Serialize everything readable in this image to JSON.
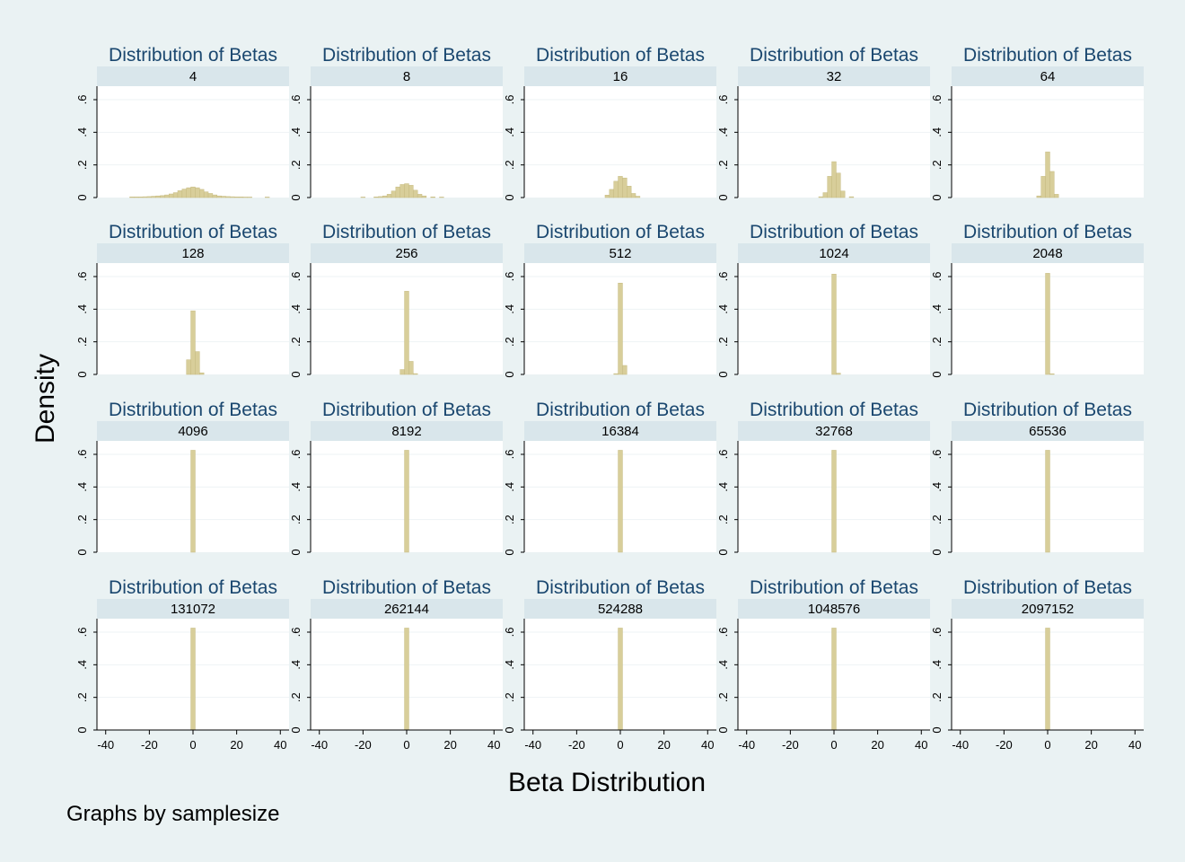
{
  "chart_data": {
    "type": "bar",
    "panel_title": "Distribution of Betas",
    "xlabel": "Beta Distribution",
    "ylabel": "Density",
    "note": "Graphs by samplesize",
    "xlim": [
      -44,
      44
    ],
    "ylim": [
      0,
      0.68
    ],
    "x_ticks": [
      -40,
      -20,
      0,
      20,
      40
    ],
    "y_ticks": [
      0,
      0.2,
      0.4,
      0.6
    ],
    "y_tick_labels": [
      "0",
      ".2",
      ".4",
      ".6"
    ],
    "grid": true,
    "colors": {
      "background": "#eaf2f3",
      "plot_area": "#ffffff",
      "strip": "#d9e6eb",
      "bar_fill": "#d8ce9a",
      "bar_stroke": "#c6bb81",
      "title": "#1a476f",
      "grid": "#eef3f5"
    },
    "bin_width": 2,
    "panels": [
      {
        "samplesize": "4",
        "bins": [
          [
            -28,
            0.004
          ],
          [
            -26,
            0.004
          ],
          [
            -24,
            0.004
          ],
          [
            -22,
            0.005
          ],
          [
            -20,
            0.006
          ],
          [
            -18,
            0.008
          ],
          [
            -16,
            0.01
          ],
          [
            -14,
            0.012
          ],
          [
            -12,
            0.016
          ],
          [
            -10,
            0.022
          ],
          [
            -8,
            0.03
          ],
          [
            -6,
            0.042
          ],
          [
            -4,
            0.052
          ],
          [
            -2,
            0.06
          ],
          [
            0,
            0.065
          ],
          [
            2,
            0.06
          ],
          [
            4,
            0.05
          ],
          [
            6,
            0.035
          ],
          [
            8,
            0.025
          ],
          [
            10,
            0.016
          ],
          [
            12,
            0.01
          ],
          [
            14,
            0.008
          ],
          [
            16,
            0.006
          ],
          [
            18,
            0.005
          ],
          [
            20,
            0.004
          ],
          [
            22,
            0.004
          ],
          [
            24,
            0.003
          ],
          [
            26,
            0.003
          ],
          [
            34,
            0.003
          ]
        ]
      },
      {
        "samplesize": "8",
        "bins": [
          [
            -20,
            0.003
          ],
          [
            -14,
            0.004
          ],
          [
            -12,
            0.006
          ],
          [
            -10,
            0.01
          ],
          [
            -8,
            0.02
          ],
          [
            -6,
            0.04
          ],
          [
            -4,
            0.065
          ],
          [
            -2,
            0.08
          ],
          [
            0,
            0.085
          ],
          [
            2,
            0.075
          ],
          [
            4,
            0.045
          ],
          [
            6,
            0.02
          ],
          [
            8,
            0.01
          ],
          [
            12,
            0.004
          ],
          [
            16,
            0.003
          ]
        ]
      },
      {
        "samplesize": "16",
        "bins": [
          [
            -6,
            0.015
          ],
          [
            -4,
            0.05
          ],
          [
            -2,
            0.1
          ],
          [
            0,
            0.13
          ],
          [
            2,
            0.12
          ],
          [
            4,
            0.07
          ],
          [
            6,
            0.025
          ],
          [
            8,
            0.008
          ]
        ]
      },
      {
        "samplesize": "32",
        "bins": [
          [
            -6,
            0.005
          ],
          [
            -4,
            0.03
          ],
          [
            -2,
            0.13
          ],
          [
            0,
            0.22
          ],
          [
            2,
            0.15
          ],
          [
            4,
            0.04
          ],
          [
            8,
            0.005
          ]
        ]
      },
      {
        "samplesize": "64",
        "bins": [
          [
            -4,
            0.01
          ],
          [
            -2,
            0.13
          ],
          [
            0,
            0.28
          ],
          [
            2,
            0.16
          ],
          [
            4,
            0.02
          ]
        ]
      },
      {
        "samplesize": "128",
        "bins": [
          [
            -2,
            0.09
          ],
          [
            0,
            0.39
          ],
          [
            2,
            0.14
          ],
          [
            4,
            0.01
          ]
        ]
      },
      {
        "samplesize": "256",
        "bins": [
          [
            -2,
            0.03
          ],
          [
            0,
            0.51
          ],
          [
            2,
            0.08
          ],
          [
            4,
            0.005
          ]
        ]
      },
      {
        "samplesize": "512",
        "bins": [
          [
            -2,
            0.005
          ],
          [
            0,
            0.56
          ],
          [
            2,
            0.055
          ]
        ]
      },
      {
        "samplesize": "1024",
        "bins": [
          [
            0,
            0.615
          ],
          [
            2,
            0.008
          ]
        ]
      },
      {
        "samplesize": "2048",
        "bins": [
          [
            0,
            0.62
          ],
          [
            2,
            0.004
          ]
        ]
      },
      {
        "samplesize": "4096",
        "bins": [
          [
            0,
            0.625
          ]
        ]
      },
      {
        "samplesize": "8192",
        "bins": [
          [
            0,
            0.625
          ]
        ]
      },
      {
        "samplesize": "16384",
        "bins": [
          [
            0,
            0.625
          ]
        ]
      },
      {
        "samplesize": "32768",
        "bins": [
          [
            0,
            0.625
          ]
        ]
      },
      {
        "samplesize": "65536",
        "bins": [
          [
            0,
            0.625
          ]
        ]
      },
      {
        "samplesize": "131072",
        "bins": [
          [
            0,
            0.625
          ]
        ]
      },
      {
        "samplesize": "262144",
        "bins": [
          [
            0,
            0.625
          ]
        ]
      },
      {
        "samplesize": "524288",
        "bins": [
          [
            0,
            0.625
          ]
        ]
      },
      {
        "samplesize": "1048576",
        "bins": [
          [
            0,
            0.625
          ]
        ]
      },
      {
        "samplesize": "2097152",
        "bins": [
          [
            0,
            0.625
          ]
        ]
      }
    ]
  }
}
